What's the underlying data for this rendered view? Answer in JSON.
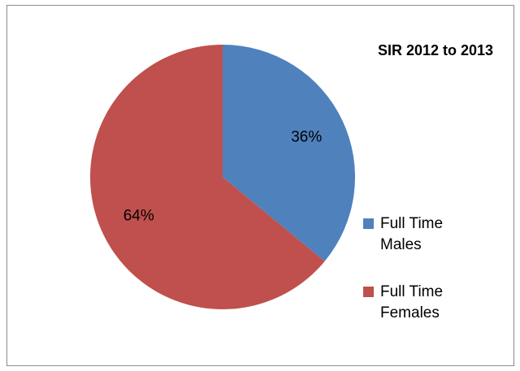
{
  "chart_data": {
    "type": "pie",
    "title": "SIR 2012 to 2013",
    "categories": [
      "Full Time Males",
      "Full Time Females"
    ],
    "values": [
      36,
      64
    ],
    "value_labels": [
      "36%",
      "64%"
    ],
    "colors": [
      "#4f81bd",
      "#c0504d"
    ],
    "legend": "right"
  }
}
